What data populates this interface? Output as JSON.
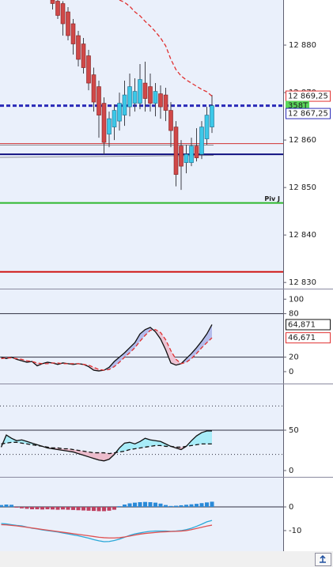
{
  "chart_data": [
    {
      "type": "candlestick",
      "ylim": [
        12828.7,
        12889.5
      ],
      "yticks": [
        {
          "value": 12880,
          "label": "12 880"
        },
        {
          "value": 12870,
          "label": "12 870"
        },
        {
          "value": 12860,
          "label": "12 860"
        },
        {
          "value": 12850,
          "label": "12 850"
        },
        {
          "value": 12840,
          "label": "12 840"
        },
        {
          "value": 12830,
          "label": "12 830"
        }
      ],
      "up_color": "#3cc8e8",
      "down_color": "#d04848",
      "open": [
        12889.5,
        12889.25,
        12888.75,
        12887,
        12884.5,
        12882,
        12880.25,
        12877.75,
        12873.75,
        12871.25,
        12867.75,
        12861.25,
        12862.75,
        12864,
        12865.25,
        12867,
        12867.75,
        12867.75,
        12872,
        12871.25,
        12867.75,
        12869.75,
        12869.5,
        12866.25,
        12862.75,
        12858.75,
        12855.25,
        12855.25,
        12858.75,
        12857,
        12860.25,
        12862.75
      ],
      "high": [
        12889.5,
        12889.5,
        12889.25,
        12888,
        12885.5,
        12883,
        12881.5,
        12879,
        12875.25,
        12872.5,
        12869,
        12866,
        12867.5,
        12870,
        12872.5,
        12874,
        12873,
        12876,
        12876.5,
        12874,
        12872,
        12871.5,
        12871,
        12868,
        12864,
        12860,
        12859,
        12860.5,
        12862.5,
        12864,
        12867,
        12869.5
      ],
      "low": [
        12887.5,
        12885.5,
        12882,
        12881,
        12878,
        12875.5,
        12874,
        12870.5,
        12866,
        12860.5,
        12857,
        12858.5,
        12860,
        12862,
        12863,
        12865,
        12866,
        12866.5,
        12866,
        12866,
        12865,
        12864.5,
        12864,
        12858.5,
        12850.25,
        12849.5,
        12853,
        12854.5,
        12855.5,
        12856,
        12859,
        12861.5
      ],
      "close": [
        12888.75,
        12886.25,
        12884.5,
        12882,
        12880.25,
        12877,
        12875.25,
        12872,
        12868,
        12865.25,
        12859.5,
        12864.5,
        12866.25,
        12867.75,
        12869.5,
        12871.25,
        12870.25,
        12872.75,
        12868.75,
        12867.75,
        12870.25,
        12867,
        12866.25,
        12862,
        12852.75,
        12854.5,
        12857,
        12858.75,
        12856.25,
        12862.75,
        12865.25,
        12867.25
      ],
      "series": [
        {
          "color": "#e03030",
          "style": "dashed",
          "values": [
            null,
            null,
            null,
            null,
            null,
            null,
            null,
            null,
            null,
            null,
            null,
            null,
            null,
            12889.5,
            12889,
            12888.17,
            12887,
            12886.17,
            12885,
            12884,
            12882.83,
            12881.5,
            12879.83,
            12877,
            12874.83,
            12873.5,
            12872.67,
            12872,
            12871.33,
            12870.67,
            12870.17,
            12869.25
          ]
        }
      ],
      "levels": [
        {
          "value": 12867.25,
          "color": "#2a2ab8",
          "style": "dashed",
          "width": 3
        },
        {
          "value": 12859.25,
          "color": "#d03030",
          "style": "solid",
          "width": 1
        },
        {
          "value": 12857,
          "color": "#101080",
          "style": "solid",
          "width": 2
        },
        {
          "value": 12846.75,
          "color": "#2db82d",
          "style": "solid",
          "width": 2,
          "label": "Piv J"
        },
        {
          "value": 12832.25,
          "color": "#d01818",
          "style": "solid",
          "width": 2
        }
      ],
      "price_labels": [
        {
          "value": 12869.25,
          "label": "12 869,25",
          "color": "#e03030"
        },
        {
          "value": 12867.25,
          "label": "12 867,25",
          "color": "#2a2ab8",
          "badge": "358T",
          "badge_color": "#5ad85a"
        }
      ]
    },
    {
      "type": "line",
      "ylim": [
        -16.4,
        114.5
      ],
      "yticks": [
        0,
        20,
        80,
        100
      ],
      "fill_colors": {
        "above": "#b4bcec",
        "below": "#ecc4d4"
      },
      "levels": [
        {
          "value": 80,
          "color": "#303040",
          "style": "solid",
          "width": 1
        },
        {
          "value": 20,
          "color": "#303040",
          "style": "solid",
          "width": 1
        }
      ],
      "series": [
        {
          "color": "#101010",
          "style": "solid",
          "values": [
            20,
            18,
            20,
            17,
            15,
            13,
            14,
            8,
            11,
            13,
            12,
            10,
            12,
            11,
            10,
            11,
            10,
            7,
            2,
            1,
            2,
            6,
            14,
            20,
            26,
            33,
            40,
            52,
            58,
            61,
            55,
            45,
            30,
            12,
            9,
            11,
            18,
            25,
            33,
            42,
            52,
            64.871
          ]
        },
        {
          "color": "#e03030",
          "style": "dashed",
          "values": [
            18,
            19,
            19,
            18,
            17,
            15,
            14,
            12,
            11,
            11,
            12,
            12,
            11,
            11,
            11,
            11,
            10,
            9,
            6,
            3,
            2,
            3,
            7,
            13,
            20,
            26,
            33,
            42,
            50,
            57,
            58,
            54,
            44,
            29,
            17,
            11,
            13,
            18,
            25,
            33,
            40,
            46.671
          ]
        }
      ],
      "price_labels": [
        {
          "value": 64.871,
          "label": "64,871",
          "color": "#101010"
        },
        {
          "value": 46.671,
          "label": "46,671",
          "color": "#e03030"
        }
      ]
    },
    {
      "type": "line",
      "ylim": [
        -7.8,
        107.8
      ],
      "yticks": [
        0,
        50
      ],
      "fill_colors": {
        "above": "#a8ecf8",
        "below": "#ecbccc"
      },
      "levels": [
        {
          "value": 80,
          "color": "#303040",
          "style": "dotted",
          "width": 1
        },
        {
          "value": 50,
          "color": "#303040",
          "style": "solid",
          "width": 1
        },
        {
          "value": 20,
          "color": "#303040",
          "style": "dotted",
          "width": 1
        }
      ],
      "series": [
        {
          "color": "#101010",
          "style": "solid",
          "values": [
            29,
            44,
            40,
            37,
            38,
            36,
            34,
            32,
            30,
            28,
            27,
            26,
            25,
            24,
            23,
            21,
            19,
            17,
            15,
            13,
            12,
            14,
            20,
            28,
            34,
            35,
            33,
            36,
            40,
            38,
            37,
            36,
            33,
            30,
            28,
            26,
            30,
            37,
            43,
            47,
            49,
            49
          ]
        },
        {
          "color": "#101010",
          "style": "dashed",
          "values": [
            33,
            34,
            35,
            35,
            34,
            33,
            32,
            31,
            30,
            29,
            28,
            28,
            27,
            27,
            26,
            25,
            24,
            23,
            22,
            22,
            22,
            21,
            22,
            23,
            24,
            26,
            27,
            28,
            29,
            30,
            31,
            31,
            30,
            30,
            29,
            29,
            30,
            31,
            32,
            33,
            33,
            33
          ]
        }
      ]
    },
    {
      "type": "bar",
      "ylim": [
        -18.7,
        12.7
      ],
      "yticks": [
        -10,
        0
      ],
      "levels": [
        {
          "value": 0,
          "color": "#303040",
          "style": "solid",
          "width": 1
        }
      ],
      "series": [
        {
          "color": "#2a8ad8",
          "negative_color": "#c04060",
          "style": "bar",
          "values": [
            0.8,
            1,
            0.9,
            -0.3,
            -0.6,
            -0.8,
            -1,
            -1,
            -1.1,
            -1,
            -1.1,
            -1.2,
            -1.1,
            -1.2,
            -1.3,
            -1.4,
            -1.5,
            -1.6,
            -1.7,
            -1.8,
            -1.8,
            -1.6,
            -1.2,
            0.3,
            1,
            1.5,
            1.8,
            2,
            2.1,
            2,
            1.8,
            1.4,
            0.8,
            0.4,
            0.5,
            0.7,
            0.9,
            1.1,
            1.3,
            1.6,
            1.9,
            2.2
          ]
        },
        {
          "color": "#2aa8d8",
          "style": "solid",
          "values": [
            -7,
            -7.2,
            -7.5,
            -7.8,
            -8,
            -8.5,
            -9,
            -9.3,
            -9.7,
            -10,
            -10.3,
            -10.6,
            -11,
            -11.4,
            -11.8,
            -12.2,
            -12.7,
            -13.2,
            -13.8,
            -14.3,
            -14.7,
            -14.6,
            -14.2,
            -13.6,
            -12.8,
            -12,
            -11.4,
            -11,
            -10.6,
            -10.3,
            -10.2,
            -10.2,
            -10.2,
            -10.3,
            -10.2,
            -10,
            -9.6,
            -9,
            -8.2,
            -7.3,
            -6.3,
            -5.7
          ]
        },
        {
          "color": "#e05050",
          "style": "solid",
          "values": [
            -7.5,
            -7.6,
            -7.8,
            -8,
            -8.3,
            -8.6,
            -8.9,
            -9.2,
            -9.5,
            -9.8,
            -10.1,
            -10.4,
            -10.7,
            -11,
            -11.3,
            -11.6,
            -11.9,
            -12.2,
            -12.5,
            -12.8,
            -13,
            -13.1,
            -13.1,
            -13,
            -12.7,
            -12.3,
            -11.9,
            -11.5,
            -11.2,
            -11,
            -10.8,
            -10.6,
            -10.5,
            -10.4,
            -10.3,
            -10.2,
            -10,
            -9.6,
            -9.1,
            -8.6,
            -8.1,
            -7.7
          ]
        }
      ]
    }
  ]
}
